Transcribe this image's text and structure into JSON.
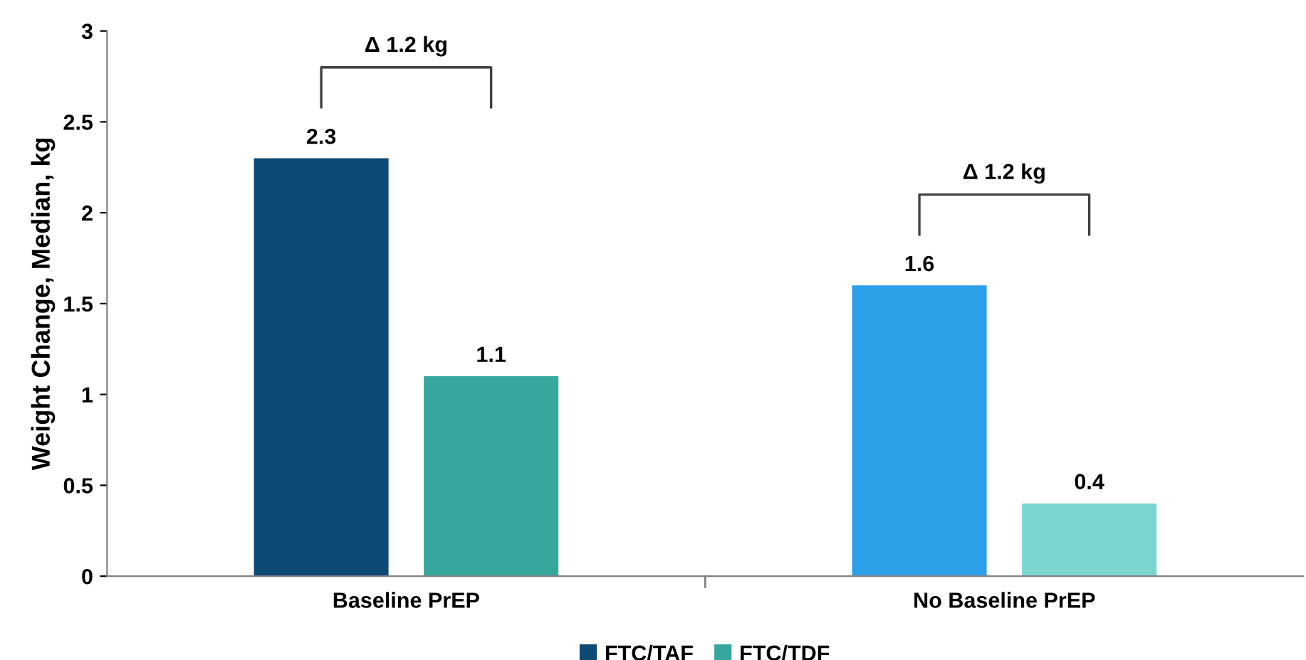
{
  "chart_data": {
    "type": "bar",
    "ylabel": "Weight Change, Median, kg",
    "categories": [
      "Baseline PrEP",
      "No Baseline PrEP"
    ],
    "series": [
      {
        "name": "FTC/TAF",
        "color": "#0d4a75",
        "colors": [
          "#0d4a75",
          "#2b9fe8"
        ],
        "values": [
          2.3,
          1.6
        ]
      },
      {
        "name": "FTC/TDF",
        "color": "#35a79c",
        "colors": [
          "#35a79c",
          "#7ad6cf"
        ],
        "values": [
          1.1,
          0.4
        ]
      }
    ],
    "ylim": [
      0,
      3
    ],
    "yticks": [
      0,
      0.5,
      1,
      1.5,
      2,
      2.5,
      3
    ],
    "data_labels": true,
    "legend": "bottom",
    "grid": false,
    "annotations": [
      "Δ 1.2 kg",
      "Δ 1.2 kg"
    ]
  }
}
